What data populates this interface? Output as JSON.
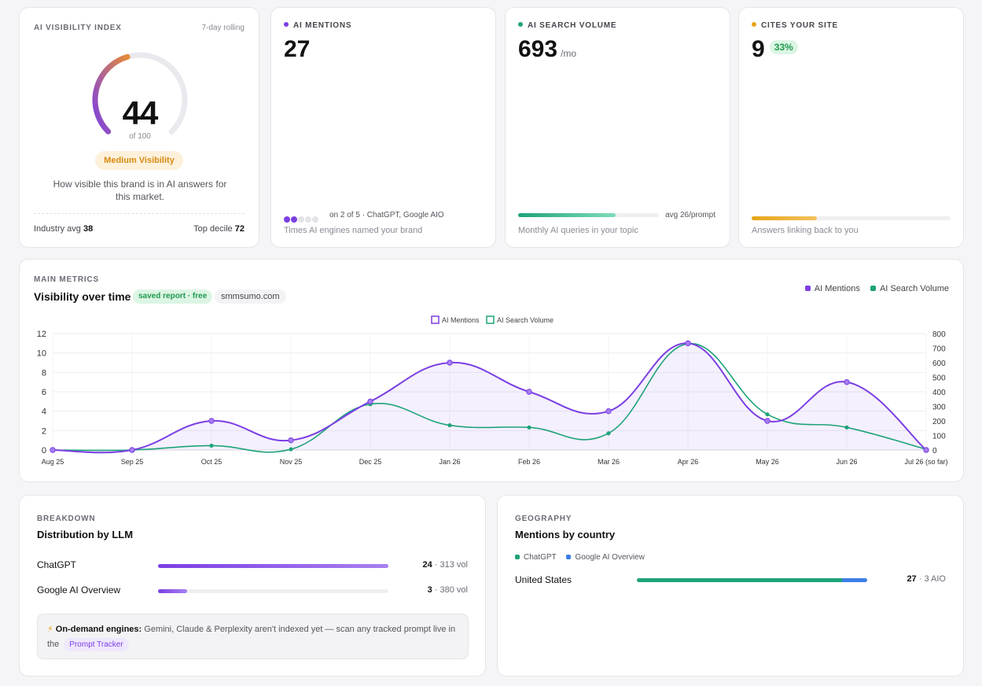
{
  "index_card": {
    "eyebrow": "AI VISIBILITY INDEX",
    "period": "7-day rolling",
    "score": "44",
    "score_value": 44,
    "score_max": "of 100",
    "badge": "Medium Visibility",
    "description": "How visible this brand is in AI answers for this market.",
    "industry_avg_label": "Industry avg",
    "industry_avg": "38",
    "top_decile_label": "Top decile",
    "top_decile": "72"
  },
  "mentions_card": {
    "eyebrow": "AI MENTIONS",
    "value": "27",
    "engines_text": "on 2 of 5 · ChatGPT, Google AIO",
    "engines_active": 2,
    "engines_total": 5,
    "caption": "Times AI engines named your brand",
    "dot_color": "#7b3fe4"
  },
  "volume_card": {
    "eyebrow": "AI SEARCH VOLUME",
    "value": "693",
    "unit": "/mo",
    "avg_text": "avg 26/prompt",
    "fill_fraction": 0.69,
    "caption": "Monthly AI queries in your topic",
    "dot_color": "#1ea37a"
  },
  "cites_card": {
    "eyebrow": "CITES YOUR SITE",
    "value": "9",
    "pct": "33%",
    "fill_fraction": 0.33,
    "caption": "Answers linking back to you",
    "dot_color": "#e8a418"
  },
  "main": {
    "eyebrow": "MAIN METRICS",
    "title": "Visibility over time",
    "badge": "saved report · free",
    "domain": "smmsumo.com",
    "legend_mentions": "AI Mentions",
    "legend_volume": "AI Search Volume"
  },
  "chart_data": {
    "type": "line",
    "x": [
      "Aug 25",
      "Sep 25",
      "Oct 25",
      "Nov 25",
      "Dec 25",
      "Jan 26",
      "Feb 26",
      "Mar 26",
      "Apr 26",
      "May 26",
      "Jun 26",
      "Jul 26 (so far)"
    ],
    "series": [
      {
        "name": "AI Mentions",
        "axis": "left",
        "color": "#7b3fe4",
        "values": [
          0,
          0,
          3,
          1,
          5,
          9,
          6,
          4,
          11,
          3,
          7,
          0
        ]
      },
      {
        "name": "AI Search Volume",
        "axis": "right",
        "color": "#1ea37a",
        "values": [
          0,
          0,
          30,
          5,
          315,
          170,
          155,
          115,
          730,
          245,
          155,
          5
        ]
      }
    ],
    "ylim_left": [
      0,
      12
    ],
    "yticks_left": [
      0,
      2,
      4,
      6,
      8,
      10,
      12
    ],
    "ylim_right": [
      0,
      800
    ],
    "yticks_right": [
      0,
      100,
      200,
      300,
      400,
      500,
      600,
      700,
      800
    ],
    "grid": true,
    "legend": "top-center"
  },
  "breakdown": {
    "eyebrow": "BREAKDOWN",
    "title": "Distribution by LLM",
    "rows": [
      {
        "name": "ChatGPT",
        "mentions": "24",
        "volume": "· 313 vol",
        "fill_fraction": 1.0
      },
      {
        "name": "Google AI Overview",
        "mentions": "3",
        "volume": "· 380 vol",
        "fill_fraction": 0.125
      }
    ],
    "ondemand_title": "On-demand engines:",
    "ondemand_text": "Gemini, Claude & Perplexity aren't indexed yet — scan any tracked prompt live in the",
    "ondemand_link": "Prompt Tracker"
  },
  "geography": {
    "eyebrow": "GEOGRAPHY",
    "title": "Mentions by country",
    "legend_chatgpt": "ChatGPT",
    "legend_aio": "Google AI Overview",
    "country": "United States",
    "mentions": "27",
    "aio": "· 3 AIO",
    "chatgpt_fraction": 0.89,
    "aio_fraction": 0.11
  },
  "colors": {
    "purple": "#7b3fe4",
    "green": "#1ea37a",
    "blue": "#3d7fe6",
    "amber": "#e8a418"
  }
}
